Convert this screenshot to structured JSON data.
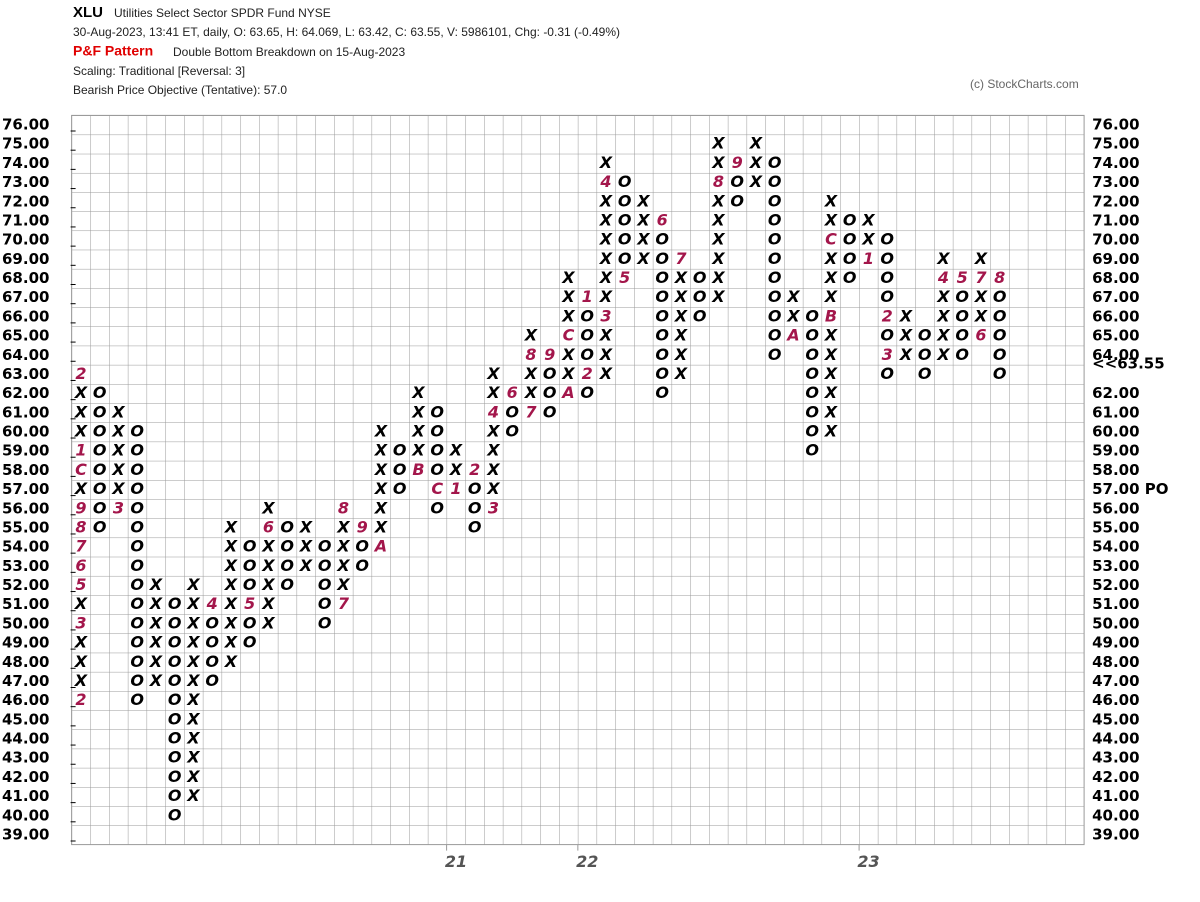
{
  "header": {
    "symbol": "XLU",
    "name": "Utilities Select Sector SPDR Fund  NYSE",
    "quote": "30-Aug-2023, 13:41 ET, daily, O: 63.65, H: 64.069, L: 63.42, C: 63.55, V: 5986101, Chg: -0.31 (-0.49%)",
    "pattern_label": "P&F Pattern",
    "pattern": "Double Bottom Breakdown on 15-Aug-2023",
    "scaling": "Scaling: Traditional [Reversal: 3]",
    "objective": "Bearish Price Objective (Tentative): 57.0",
    "copyright": "(c) StockCharts.com"
  },
  "chart_data": {
    "type": "point-and-figure",
    "box_size": 1,
    "x_color": "#000000",
    "o_color": "#000000",
    "marker_color": "#a3164b",
    "xlim": [
      -0.5,
      53.5
    ],
    "ylim": [
      38.5,
      76.5
    ],
    "xticks": [
      {
        "value": 20,
        "label": "21"
      },
      {
        "value": 27,
        "label": "22"
      },
      {
        "value": 42,
        "label": "23"
      }
    ],
    "yticks": [
      {
        "value": 76,
        "label": "76.00"
      },
      {
        "value": 75,
        "label": "75.00"
      },
      {
        "value": 74,
        "label": "74.00"
      },
      {
        "value": 73,
        "label": "73.00"
      },
      {
        "value": 72,
        "label": "72.00"
      },
      {
        "value": 71,
        "label": "71.00"
      },
      {
        "value": 70,
        "label": "70.00"
      },
      {
        "value": 69,
        "label": "69.00"
      },
      {
        "value": 68,
        "label": "68.00"
      },
      {
        "value": 67,
        "label": "67.00"
      },
      {
        "value": 66,
        "label": "66.00"
      },
      {
        "value": 65,
        "label": "65.00"
      },
      {
        "value": 64,
        "label": "64.00"
      },
      {
        "value": 63,
        "label": "63.00",
        "color": "#e00000"
      },
      {
        "value": 62,
        "label": "62.00"
      },
      {
        "value": 61,
        "label": "61.00"
      },
      {
        "value": 60,
        "label": "60.00"
      },
      {
        "value": 59,
        "label": "59.00"
      },
      {
        "value": 58,
        "label": "58.00"
      },
      {
        "value": 57,
        "label": "57.00",
        "color": "#e00000"
      },
      {
        "value": 56,
        "label": "56.00"
      },
      {
        "value": 55,
        "label": "55.00"
      },
      {
        "value": 54,
        "label": "54.00"
      },
      {
        "value": 53,
        "label": "53.00"
      },
      {
        "value": 52,
        "label": "52.00"
      },
      {
        "value": 51,
        "label": "51.00"
      },
      {
        "value": 50,
        "label": "50.00"
      },
      {
        "value": 49,
        "label": "49.00"
      },
      {
        "value": 48,
        "label": "48.00"
      },
      {
        "value": 47,
        "label": "47.00"
      },
      {
        "value": 46,
        "label": "46.00"
      },
      {
        "value": 45,
        "label": "45.00"
      },
      {
        "value": 44,
        "label": "44.00"
      },
      {
        "value": 43,
        "label": "43.00"
      },
      {
        "value": 42,
        "label": "42.00"
      },
      {
        "value": 41,
        "label": "41.00"
      },
      {
        "value": 40,
        "label": "40.00"
      },
      {
        "value": 39,
        "label": "39.00"
      }
    ],
    "y2ticks": [
      {
        "value": 76,
        "label": "76.00"
      },
      {
        "value": 75,
        "label": "75.00"
      },
      {
        "value": 74,
        "label": "74.00"
      },
      {
        "value": 73,
        "label": "73.00"
      },
      {
        "value": 72,
        "label": "72.00"
      },
      {
        "value": 71,
        "label": "71.00"
      },
      {
        "value": 70,
        "label": "70.00"
      },
      {
        "value": 69,
        "label": "69.00"
      },
      {
        "value": 68,
        "label": "68.00"
      },
      {
        "value": 67,
        "label": "67.00"
      },
      {
        "value": 66,
        "label": "66.00"
      },
      {
        "value": 65,
        "label": "65.00"
      },
      {
        "value": 64,
        "label": "64.00"
      },
      {
        "value": 63.55,
        "label": "<<63.55",
        "color": "#e00000"
      },
      {
        "value": 62,
        "label": "62.00"
      },
      {
        "value": 61,
        "label": "61.00"
      },
      {
        "value": 60,
        "label": "60.00"
      },
      {
        "value": 59,
        "label": "59.00"
      },
      {
        "value": 58,
        "label": "58.00"
      },
      {
        "value": 57,
        "label": "57.00 PO",
        "color": "#e00000"
      },
      {
        "value": 56,
        "label": "56.00"
      },
      {
        "value": 55,
        "label": "55.00"
      },
      {
        "value": 54,
        "label": "54.00"
      },
      {
        "value": 53,
        "label": "53.00"
      },
      {
        "value": 52,
        "label": "52.00"
      },
      {
        "value": 51,
        "label": "51.00"
      },
      {
        "value": 50,
        "label": "50.00"
      },
      {
        "value": 49,
        "label": "49.00"
      },
      {
        "value": 48,
        "label": "48.00"
      },
      {
        "value": 47,
        "label": "47.00"
      },
      {
        "value": 46,
        "label": "46.00"
      },
      {
        "value": 45,
        "label": "45.00"
      },
      {
        "value": 44,
        "label": "44.00"
      },
      {
        "value": 43,
        "label": "43.00"
      },
      {
        "value": 42,
        "label": "42.00"
      },
      {
        "value": 41,
        "label": "41.00"
      },
      {
        "value": 40,
        "label": "40.00"
      },
      {
        "value": 39,
        "label": "39.00"
      }
    ],
    "columns": [
      {
        "type": "X",
        "low": 46,
        "high": 63,
        "markers": [
          {
            "value": 46,
            "label": "2"
          },
          {
            "value": 50,
            "label": "3"
          },
          {
            "value": 52,
            "label": "5"
          },
          {
            "value": 53,
            "label": "6"
          },
          {
            "value": 54,
            "label": "7"
          },
          {
            "value": 55,
            "label": "8"
          },
          {
            "value": 56,
            "label": "9"
          },
          {
            "value": 58,
            "label": "C"
          },
          {
            "value": 59,
            "label": "1"
          },
          {
            "value": 63,
            "label": "2"
          }
        ]
      },
      {
        "type": "O",
        "low": 55,
        "high": 62,
        "markers": []
      },
      {
        "type": "X",
        "low": 56,
        "high": 61,
        "markers": [
          {
            "value": 56,
            "label": "3"
          }
        ]
      },
      {
        "type": "O",
        "low": 46,
        "high": 60,
        "markers": []
      },
      {
        "type": "X",
        "low": 47,
        "high": 52,
        "markers": []
      },
      {
        "type": "O",
        "low": 40,
        "high": 51,
        "markers": []
      },
      {
        "type": "X",
        "low": 41,
        "high": 52,
        "markers": []
      },
      {
        "type": "O",
        "low": 47,
        "high": 51,
        "markers": [
          {
            "value": 51,
            "label": "4"
          }
        ]
      },
      {
        "type": "X",
        "low": 48,
        "high": 55,
        "markers": []
      },
      {
        "type": "O",
        "low": 49,
        "high": 54,
        "markers": [
          {
            "value": 51,
            "label": "5"
          }
        ]
      },
      {
        "type": "X",
        "low": 50,
        "high": 56,
        "markers": [
          {
            "value": 55,
            "label": "6"
          }
        ]
      },
      {
        "type": "O",
        "low": 52,
        "high": 55,
        "markers": []
      },
      {
        "type": "X",
        "low": 53,
        "high": 55,
        "markers": []
      },
      {
        "type": "O",
        "low": 50,
        "high": 54,
        "markers": []
      },
      {
        "type": "X",
        "low": 51,
        "high": 56,
        "markers": [
          {
            "value": 51,
            "label": "7"
          },
          {
            "value": 56,
            "label": "8"
          }
        ]
      },
      {
        "type": "O",
        "low": 53,
        "high": 55,
        "markers": [
          {
            "value": 55,
            "label": "9"
          }
        ]
      },
      {
        "type": "X",
        "low": 54,
        "high": 60,
        "markers": [
          {
            "value": 54,
            "label": "A"
          }
        ]
      },
      {
        "type": "O",
        "low": 57,
        "high": 59,
        "markers": []
      },
      {
        "type": "X",
        "low": 58,
        "high": 62,
        "markers": [
          {
            "value": 58,
            "label": "B"
          }
        ]
      },
      {
        "type": "O",
        "low": 56,
        "high": 61,
        "markers": [
          {
            "value": 57,
            "label": "C"
          }
        ]
      },
      {
        "type": "X",
        "low": 57,
        "high": 59,
        "markers": [
          {
            "value": 57,
            "label": "1"
          }
        ]
      },
      {
        "type": "O",
        "low": 55,
        "high": 58,
        "markers": [
          {
            "value": 58,
            "label": "2"
          }
        ]
      },
      {
        "type": "X",
        "low": 56,
        "high": 63,
        "markers": [
          {
            "value": 56,
            "label": "3"
          },
          {
            "value": 61,
            "label": "4"
          }
        ]
      },
      {
        "type": "O",
        "low": 60,
        "high": 62,
        "markers": [
          {
            "value": 62,
            "label": "6"
          }
        ]
      },
      {
        "type": "X",
        "low": 61,
        "high": 65,
        "markers": [
          {
            "value": 61,
            "label": "7"
          },
          {
            "value": 64,
            "label": "8"
          }
        ]
      },
      {
        "type": "O",
        "low": 61,
        "high": 64,
        "markers": [
          {
            "value": 64,
            "label": "9"
          }
        ]
      },
      {
        "type": "X",
        "low": 62,
        "high": 68,
        "markers": [
          {
            "value": 62,
            "label": "A"
          },
          {
            "value": 65,
            "label": "C"
          }
        ]
      },
      {
        "type": "O",
        "low": 62,
        "high": 67,
        "markers": [
          {
            "value": 67,
            "label": "1"
          },
          {
            "value": 63,
            "label": "2"
          }
        ]
      },
      {
        "type": "X",
        "low": 63,
        "high": 74,
        "markers": [
          {
            "value": 66,
            "label": "3"
          },
          {
            "value": 73,
            "label": "4"
          }
        ]
      },
      {
        "type": "O",
        "low": 68,
        "high": 73,
        "markers": [
          {
            "value": 68,
            "label": "5"
          }
        ]
      },
      {
        "type": "X",
        "low": 69,
        "high": 72,
        "markers": []
      },
      {
        "type": "O",
        "low": 62,
        "high": 71,
        "markers": [
          {
            "value": 71,
            "label": "6"
          }
        ]
      },
      {
        "type": "X",
        "low": 63,
        "high": 69,
        "markers": [
          {
            "value": 69,
            "label": "7"
          }
        ]
      },
      {
        "type": "O",
        "low": 66,
        "high": 68,
        "markers": []
      },
      {
        "type": "X",
        "low": 67,
        "high": 75,
        "markers": [
          {
            "value": 73,
            "label": "8"
          }
        ]
      },
      {
        "type": "O",
        "low": 72,
        "high": 74,
        "markers": [
          {
            "value": 74,
            "label": "9"
          }
        ]
      },
      {
        "type": "X",
        "low": 73,
        "high": 75,
        "markers": []
      },
      {
        "type": "O",
        "low": 64,
        "high": 74,
        "markers": []
      },
      {
        "type": "X",
        "low": 65,
        "high": 67,
        "markers": [
          {
            "value": 65,
            "label": "A"
          }
        ]
      },
      {
        "type": "O",
        "low": 59,
        "high": 66,
        "markers": []
      },
      {
        "type": "X",
        "low": 60,
        "high": 72,
        "markers": [
          {
            "value": 66,
            "label": "B"
          },
          {
            "value": 70,
            "label": "C"
          }
        ]
      },
      {
        "type": "O",
        "low": 68,
        "high": 71,
        "markers": []
      },
      {
        "type": "X",
        "low": 69,
        "high": 71,
        "markers": [
          {
            "value": 69,
            "label": "1"
          }
        ]
      },
      {
        "type": "O",
        "low": 63,
        "high": 70,
        "markers": [
          {
            "value": 66,
            "label": "2"
          },
          {
            "value": 64,
            "label": "3"
          }
        ]
      },
      {
        "type": "X",
        "low": 64,
        "high": 66,
        "markers": []
      },
      {
        "type": "O",
        "low": 63,
        "high": 65,
        "markers": []
      },
      {
        "type": "X",
        "low": 64,
        "high": 69,
        "markers": [
          {
            "value": 68,
            "label": "4"
          }
        ]
      },
      {
        "type": "O",
        "low": 64,
        "high": 68,
        "markers": [
          {
            "value": 68,
            "label": "5"
          }
        ]
      },
      {
        "type": "X",
        "low": 65,
        "high": 69,
        "markers": [
          {
            "value": 65,
            "label": "6"
          },
          {
            "value": 68,
            "label": "7"
          }
        ]
      },
      {
        "type": "O",
        "low": 63,
        "high": 68,
        "markers": [
          {
            "value": 68,
            "label": "8"
          }
        ]
      }
    ]
  }
}
